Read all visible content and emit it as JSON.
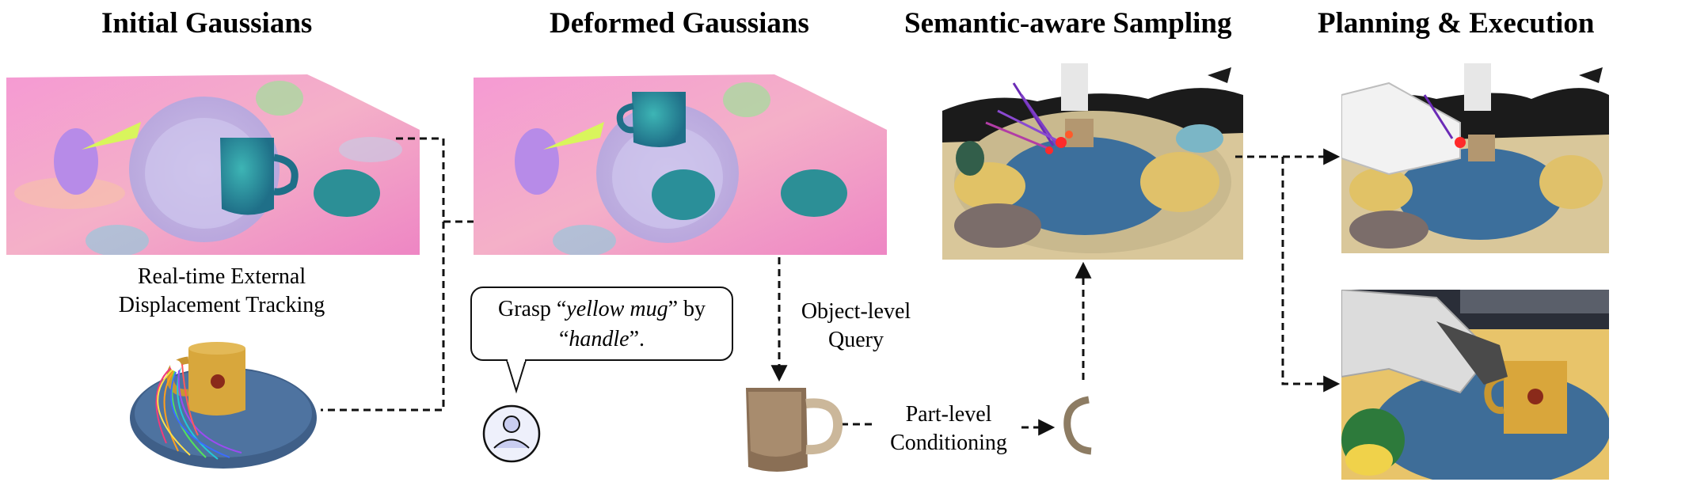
{
  "titles": {
    "initial": "Initial Gaussians",
    "deformed": "Deformed Gaussians",
    "sampling": "Semantic-aware Sampling",
    "planning": "Planning & Execution"
  },
  "tracking_label": {
    "line1": "Real-time External",
    "line2": "Displacement Tracking"
  },
  "instruction": {
    "prefix": "Grasp “",
    "object": "yellow mug",
    "middle": "” by",
    "open_quote": "“",
    "part": "handle",
    "suffix": "”."
  },
  "object_query": {
    "line1": "Object-level",
    "line2": "Query"
  },
  "part_conditioning": {
    "line1": "Part-level",
    "line2": "Conditioning"
  },
  "colors": {
    "arrow": "#111111",
    "plate": "#3d6d9a",
    "mug": "#d8a73c",
    "gaussian_pink": "#f08ccc",
    "gaussian_teal": "#2a9a9a"
  }
}
